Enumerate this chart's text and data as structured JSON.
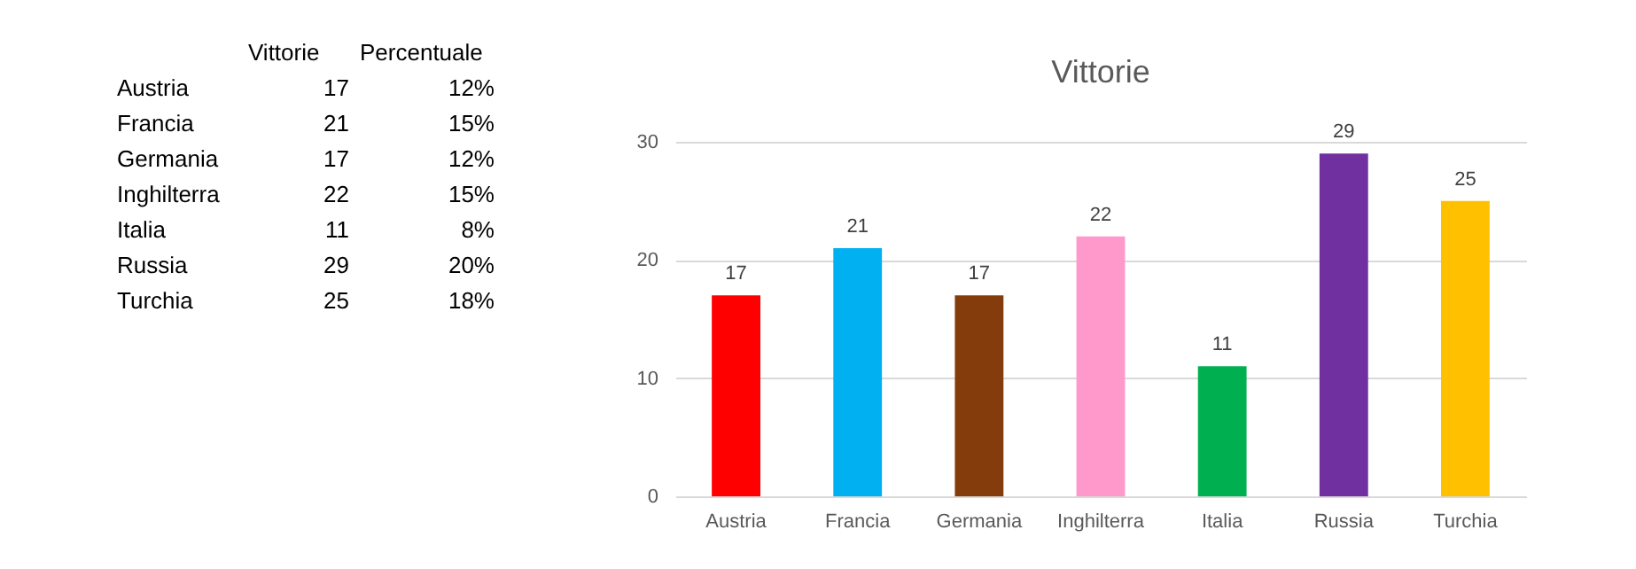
{
  "chart_data": [
    {
      "type": "other",
      "categories": [
        "Austria",
        "Francia",
        "Germania",
        "Inghilterra",
        "Italia",
        "Russia",
        "Turchia"
      ],
      "series": [
        {
          "name": "Vittorie",
          "values": [
            17,
            21,
            17,
            22,
            11,
            29,
            25
          ]
        }
      ],
      "data_labels": true,
      "annotations": [
        "Percentuale",
        "12%",
        "15%",
        "12%",
        "15%",
        "8%",
        "20%",
        "18%"
      ]
    },
    {
      "type": "bar",
      "title": "Vittorie",
      "categories": [
        "Austria",
        "Francia",
        "Germania",
        "Inghilterra",
        "Italia",
        "Russia",
        "Turchia"
      ],
      "values": [
        17,
        21,
        17,
        22,
        11,
        29,
        25
      ],
      "colors": [
        "#ff0000",
        "#00b0f0",
        "#843c0c",
        "#ff99cc",
        "#00b050",
        "#7030a0",
        "#ffc000"
      ],
      "ylim": [
        0,
        30
      ],
      "yticks": [
        0,
        10,
        20,
        30
      ],
      "grid": "y",
      "data_labels": true
    }
  ]
}
